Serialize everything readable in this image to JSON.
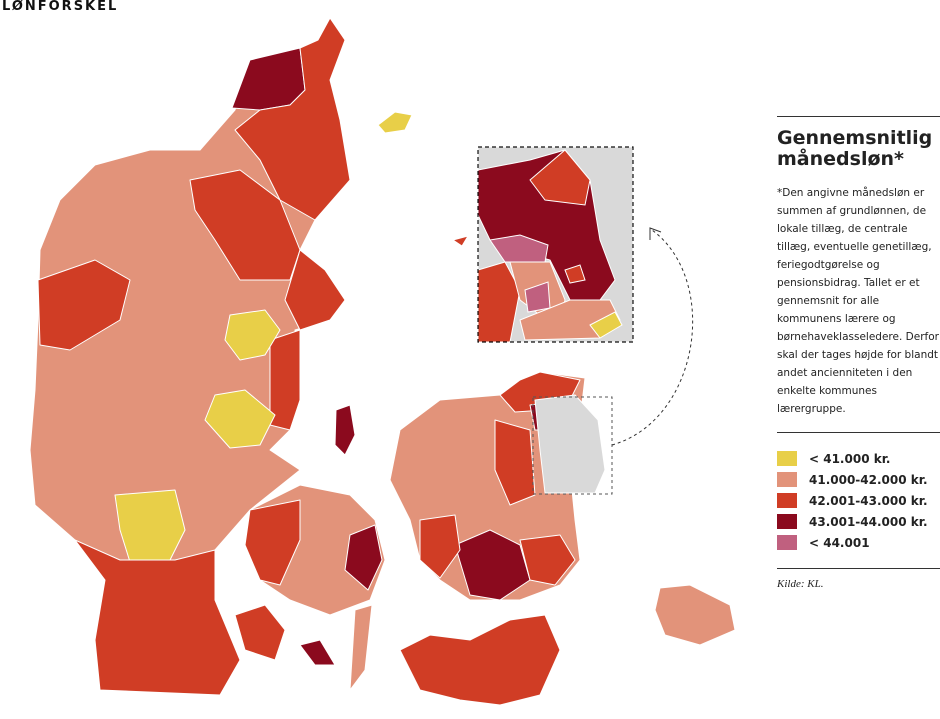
{
  "header": {
    "kicker": "LØNFORSKEL"
  },
  "panel": {
    "title_lines": [
      "Gennemsnitlig",
      "månedsløn*"
    ],
    "note": "*Den angivne månedsløn er summen af grundlønnen, de lokale tillæg, de centrale tillæg, eventuelle genetillæg, ferie­godtgørelse og pensionsbidrag. Tallet er et gennemsnit for alle kommunens lærere og børneha­veklasseledere. Derfor skal der tages højde for blandt andet ancienniteten i den enkelte kommunes lærergruppe.",
    "legend": [
      {
        "label": "< 41.000 kr.",
        "color": "#e8cf48"
      },
      {
        "label": "41.000-42.000 kr.",
        "color": "#e2937a"
      },
      {
        "label": "42.001-43.000 kr.",
        "color": "#d03d25"
      },
      {
        "label": "43.001-44.000 kr.",
        "color": "#8b0a1e"
      },
      {
        "label": "< 44.001",
        "color": "#c0607f"
      }
    ],
    "source": "Kilde: KL."
  }
}
